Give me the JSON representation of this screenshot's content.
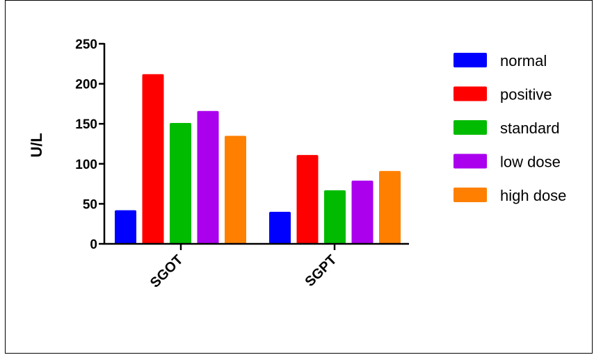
{
  "chart_data": {
    "type": "bar",
    "categories": [
      "SGOT",
      "SGPT"
    ],
    "series": [
      {
        "name": "normal",
        "values": [
          42,
          40
        ],
        "color": "#0000ff"
      },
      {
        "name": "positive",
        "values": [
          212,
          111
        ],
        "color": "#ff0000"
      },
      {
        "name": "standard",
        "values": [
          151,
          67
        ],
        "color": "#00bb00"
      },
      {
        "name": "low dose",
        "values": [
          166,
          79
        ],
        "color": "#aa00ee"
      },
      {
        "name": "high dose",
        "values": [
          135,
          91
        ],
        "color": "#ff8000"
      }
    ],
    "title": "",
    "xlabel": "",
    "ylabel": "U/L",
    "ylim": [
      0,
      250
    ],
    "yticks": [
      "0",
      "50",
      "100",
      "150",
      "200",
      "250"
    ],
    "grid": false,
    "legend": "right"
  }
}
